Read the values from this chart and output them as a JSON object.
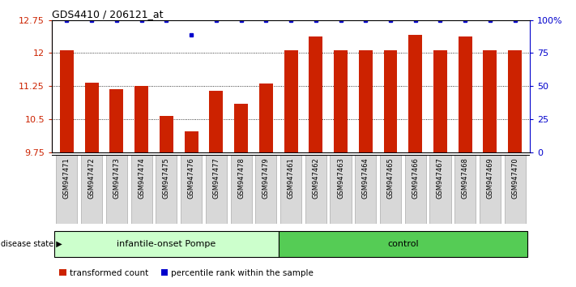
{
  "title": "GDS4410 / 206121_at",
  "samples": [
    "GSM947471",
    "GSM947472",
    "GSM947473",
    "GSM947474",
    "GSM947475",
    "GSM947476",
    "GSM947477",
    "GSM947478",
    "GSM947479",
    "GSM947461",
    "GSM947462",
    "GSM947463",
    "GSM947464",
    "GSM947465",
    "GSM947466",
    "GSM947467",
    "GSM947468",
    "GSM947469",
    "GSM947470"
  ],
  "bar_values": [
    12.07,
    11.32,
    11.18,
    11.25,
    10.57,
    10.22,
    11.15,
    10.85,
    11.31,
    12.06,
    12.38,
    12.07,
    12.07,
    12.07,
    12.42,
    12.07,
    12.38,
    12.07,
    12.07
  ],
  "percentile_values": [
    100,
    100,
    100,
    100,
    100,
    89,
    100,
    100,
    100,
    100,
    100,
    100,
    100,
    100,
    100,
    100,
    100,
    100,
    100
  ],
  "bar_color": "#cc2200",
  "dot_color": "#0000cc",
  "groups": [
    {
      "label": "infantile-onset Pompe",
      "start": 0,
      "end": 9
    },
    {
      "label": "control",
      "start": 9,
      "end": 19
    }
  ],
  "group_colors": [
    "#ccffcc",
    "#55cc55"
  ],
  "ylim_left": [
    9.75,
    12.75
  ],
  "ylim_right": [
    0,
    100
  ],
  "yticks_left": [
    9.75,
    10.5,
    11.25,
    12.0,
    12.75
  ],
  "yticks_right": [
    0,
    25,
    50,
    75,
    100
  ],
  "ytick_labels_left": [
    "9.75",
    "10.5",
    "11.25",
    "12",
    "12.75"
  ],
  "ytick_labels_right": [
    "0",
    "25",
    "50",
    "75",
    "100%"
  ],
  "legend": [
    {
      "label": "transformed count",
      "color": "#cc2200"
    },
    {
      "label": "percentile rank within the sample",
      "color": "#0000cc"
    }
  ],
  "grid_values": [
    9.75,
    10.5,
    11.25,
    12.0,
    12.75
  ],
  "title_color": "#000000",
  "left_tick_color": "#cc2200",
  "right_tick_color": "#0000cc"
}
